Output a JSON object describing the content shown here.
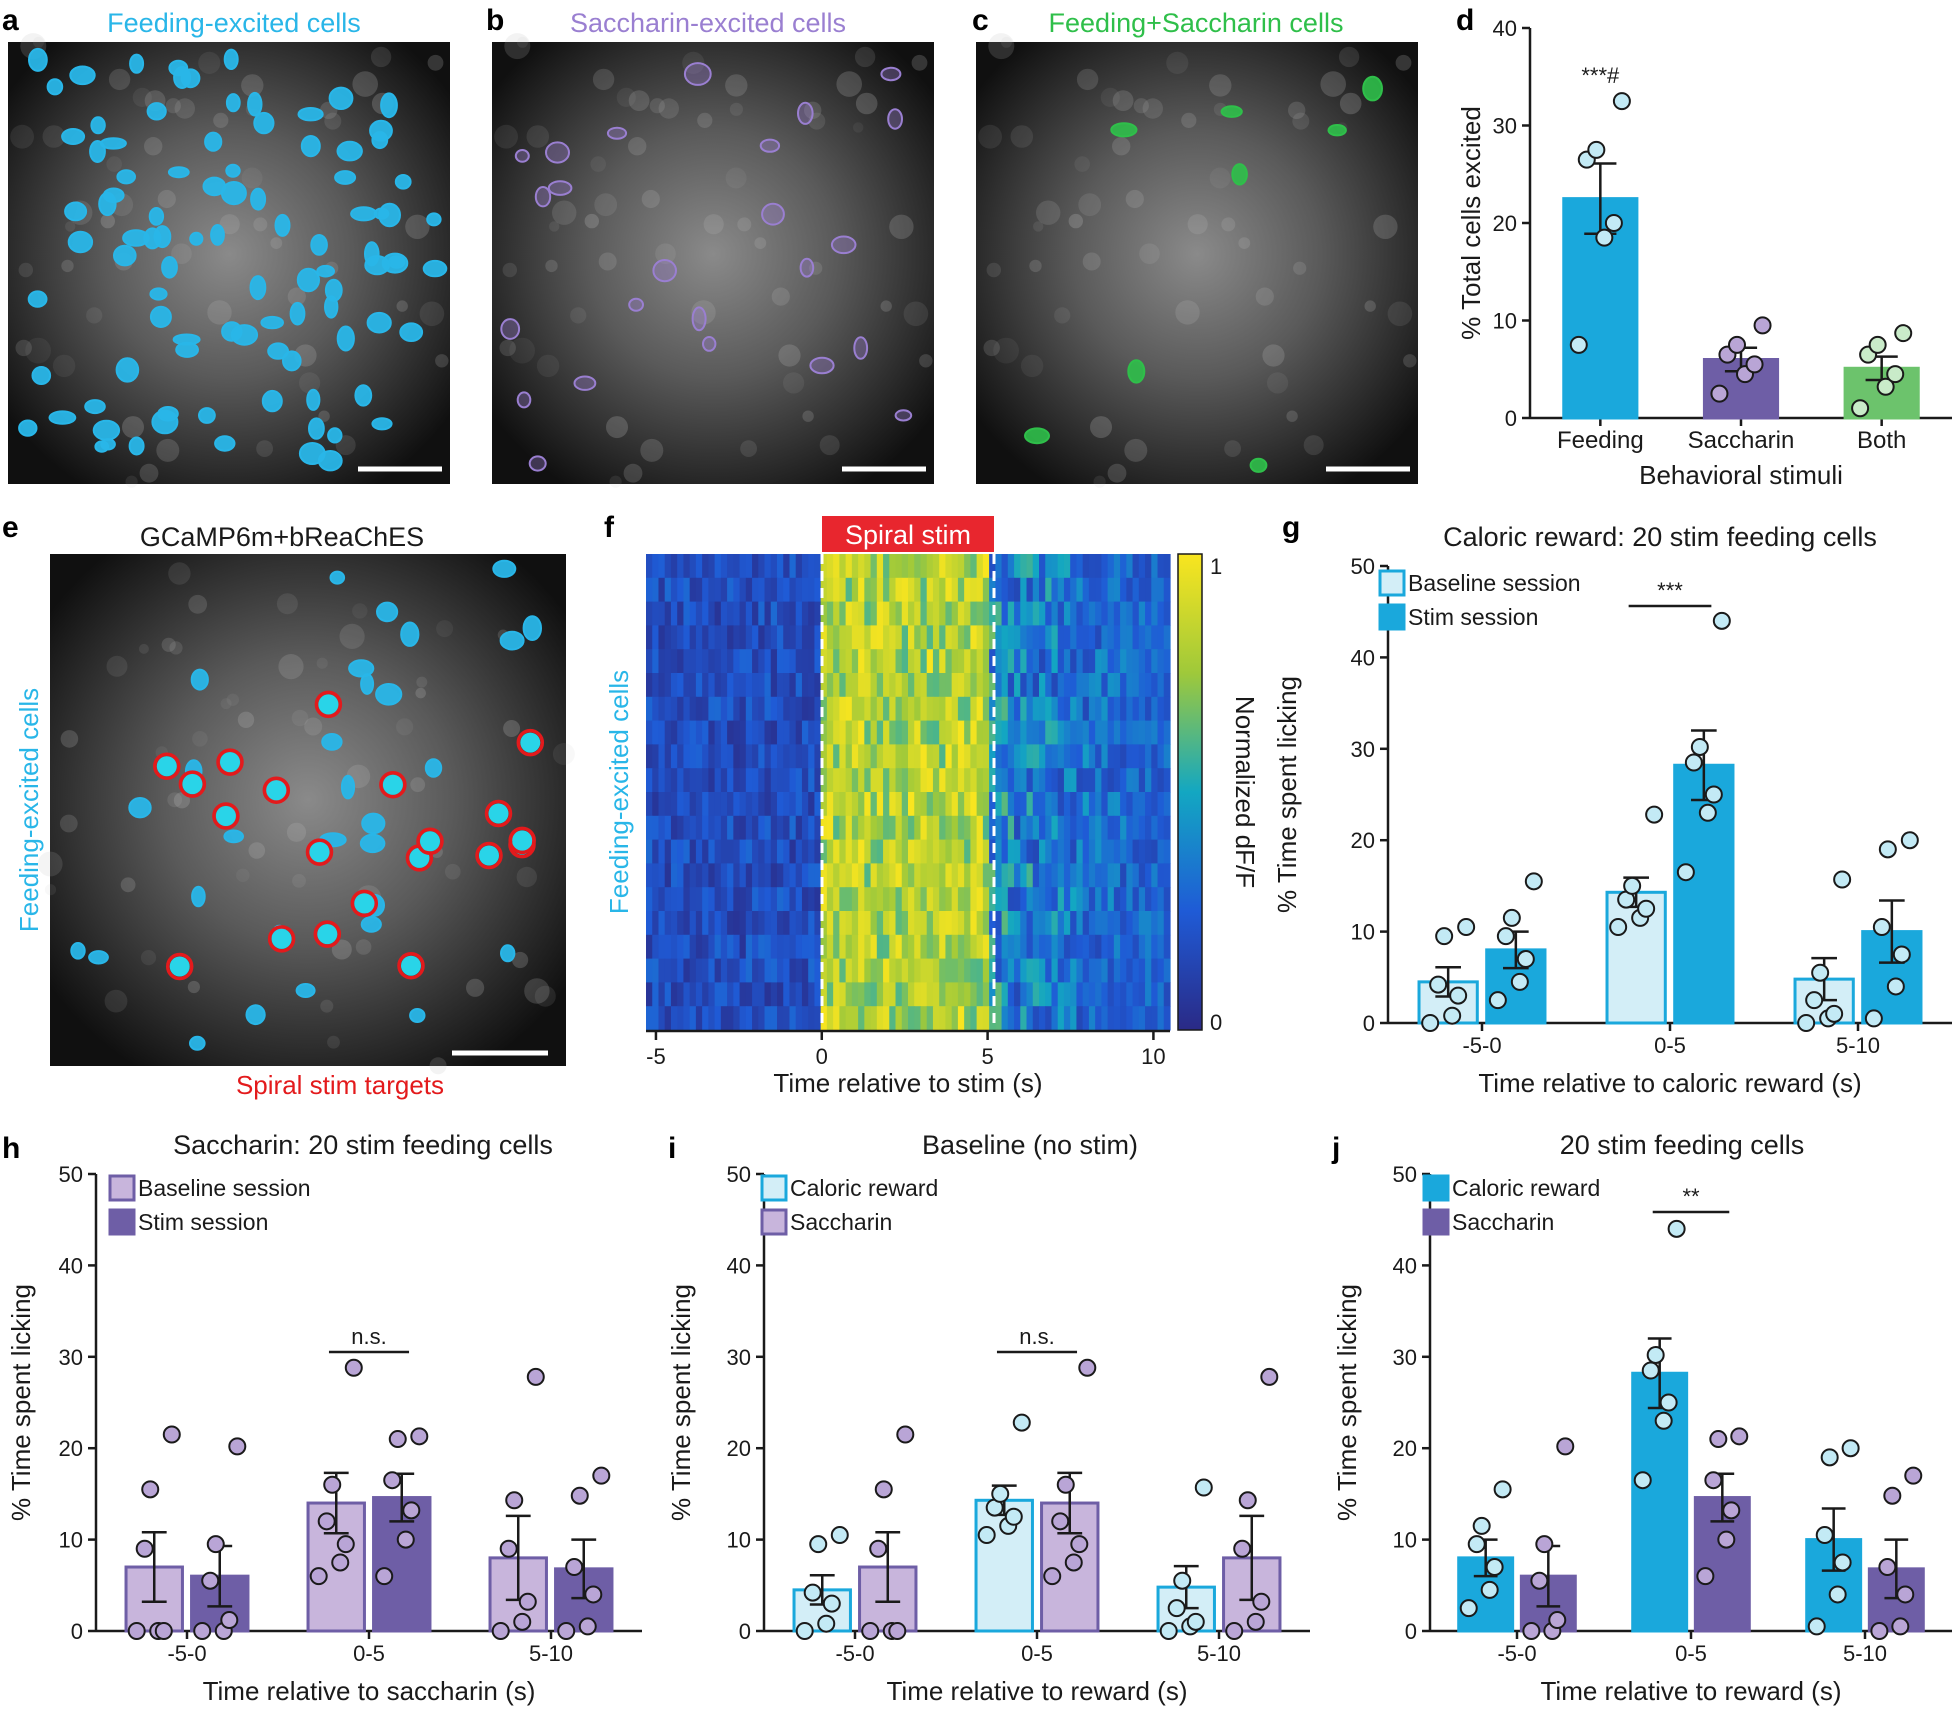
{
  "microscopy": [
    {
      "panel": "a",
      "label": "Feeding-excited cells",
      "color": "#29b6e8",
      "roi_count": 95
    },
    {
      "panel": "b",
      "label": "Saccharin-excited cells",
      "color": "#9a7fd1",
      "roi_count": 24
    },
    {
      "panel": "c",
      "label": "Feeding+Saccharin cells",
      "color": "#2fbf4a",
      "roi_count": 8
    }
  ],
  "panel_e": {
    "title": "GCaMP6m+bReaChES",
    "ylabel": "Feeding-excited cells",
    "xlabel": "Spiral stim targets",
    "ylabel_color": "#29b6e8",
    "xlabel_color": "#e31a1c",
    "target_count": 20
  },
  "panel_f": {
    "banner": "Spiral stim",
    "banner_color": "#e8262e",
    "ylabel": "Feeding-excited cells",
    "xlabel": "Time relative to stim (s)",
    "xticks": [
      "-5",
      "0",
      "5",
      "10"
    ],
    "colorbar_label": "Normalized dF/F",
    "colorbar_ticks": [
      "1",
      "0"
    ]
  },
  "colors": {
    "caloric": "#1aa8dc",
    "caloric_light": "#d3eef7",
    "saccharin": "#6e5ea6",
    "saccharin_light": "#c8b5dc",
    "both": "#6cc36c",
    "dot_cyan": "#c3eaf5",
    "dot_purple": "#b9a5d6"
  },
  "chart_data": [
    {
      "id": "d",
      "type": "bar",
      "title": "",
      "xlabel": "Behavioral stimuli",
      "ylabel": "% Total cells excited",
      "ylim": [
        0,
        40
      ],
      "yticks": [
        0,
        10,
        20,
        30,
        40
      ],
      "categories": [
        "Feeding",
        "Saccharin",
        "Both"
      ],
      "values": [
        22.5,
        6.0,
        5.1
      ],
      "sem": [
        3.6,
        1.2,
        1.2
      ],
      "points": [
        [
          7.5,
          18.5,
          20,
          26.5,
          27.5,
          32.5
        ],
        [
          2.5,
          4.5,
          5.5,
          6.5,
          7.5,
          9.5
        ],
        [
          1,
          3.2,
          4.5,
          6.5,
          7.5,
          8.7
        ]
      ],
      "significance": [
        {
          "at": "Feeding",
          "label": "***#"
        }
      ]
    },
    {
      "id": "g",
      "type": "bar",
      "title": "Caloric reward: 20 stim feeding cells",
      "xlabel": "Time relative to caloric reward (s)",
      "ylabel": "% Time spent licking",
      "ylim": [
        0,
        50
      ],
      "yticks": [
        0,
        10,
        20,
        30,
        40,
        50
      ],
      "categories": [
        "-5-0",
        "0-5",
        "5-10"
      ],
      "series": [
        {
          "name": "Baseline session",
          "style": "light_cyan",
          "values": [
            4.5,
            14.3,
            4.8
          ],
          "sem": [
            1.6,
            1.6,
            2.3
          ],
          "points": [
            [
              0,
              0.8,
              3,
              4.2,
              9.5,
              10.5
            ],
            [
              10.5,
              11.5,
              12.5,
              13.5,
              15,
              22.8
            ],
            [
              0,
              0.5,
              1,
              2.5,
              5.5,
              15.7
            ]
          ]
        },
        {
          "name": "Stim session",
          "style": "cyan",
          "values": [
            8.0,
            28.2,
            10.0
          ],
          "sem": [
            2.0,
            3.8,
            3.4
          ],
          "points": [
            [
              2.5,
              4.5,
              7,
              9.5,
              11.5,
              15.5
            ],
            [
              16.5,
              23,
              25,
              28.5,
              30.2,
              44
            ],
            [
              0.5,
              4,
              7.5,
              10.5,
              19,
              20
            ]
          ]
        }
      ],
      "significance": [
        {
          "at": "0-5",
          "label": "***"
        }
      ]
    },
    {
      "id": "h",
      "type": "bar",
      "title": "Saccharin: 20 stim feeding cells",
      "xlabel": "Time relative to saccharin (s)",
      "ylabel": "% Time spent licking",
      "ylim": [
        0,
        50
      ],
      "yticks": [
        0,
        10,
        20,
        30,
        40,
        50
      ],
      "categories": [
        "-5-0",
        "0-5",
        "5-10"
      ],
      "series": [
        {
          "name": "Baseline session",
          "style": "light_purple",
          "values": [
            7.0,
            14.0,
            8.0
          ],
          "sem": [
            3.8,
            3.3,
            4.6
          ],
          "points": [
            [
              0,
              0,
              0,
              9,
              15.5,
              21.5
            ],
            [
              6,
              7.5,
              9.5,
              12,
              16,
              28.8
            ],
            [
              0,
              1,
              3.2,
              9,
              14.3,
              27.8
            ]
          ]
        },
        {
          "name": "Stim session",
          "style": "purple",
          "values": [
            6.0,
            14.6,
            6.8
          ],
          "sem": [
            3.3,
            2.6,
            3.2
          ],
          "points": [
            [
              0,
              0,
              1.2,
              5.5,
              9.5,
              20.2
            ],
            [
              6,
              10,
              13.2,
              16.5,
              21,
              21.3
            ],
            [
              0,
              0.5,
              4,
              7,
              14.8,
              17
            ]
          ]
        }
      ],
      "significance": [
        {
          "at": "0-5",
          "label": "n.s."
        }
      ]
    },
    {
      "id": "i",
      "type": "bar",
      "title": "Baseline (no stim)",
      "xlabel": "Time relative to reward (s)",
      "ylabel": "% Time spent licking",
      "ylim": [
        0,
        50
      ],
      "yticks": [
        0,
        10,
        20,
        30,
        40,
        50
      ],
      "categories": [
        "-5-0",
        "0-5",
        "5-10"
      ],
      "series": [
        {
          "name": "Caloric reward",
          "style": "light_cyan",
          "values": [
            4.5,
            14.3,
            4.8
          ],
          "sem": [
            1.6,
            1.6,
            2.3
          ],
          "points": [
            [
              0,
              0.8,
              3,
              4.2,
              9.5,
              10.5
            ],
            [
              10.5,
              11.5,
              12.5,
              13.5,
              15,
              22.8
            ],
            [
              0,
              0.5,
              1,
              2.5,
              5.5,
              15.7
            ]
          ]
        },
        {
          "name": "Saccharin",
          "style": "light_purple",
          "values": [
            7.0,
            14.0,
            8.0
          ],
          "sem": [
            3.8,
            3.3,
            4.6
          ],
          "points": [
            [
              0,
              0,
              0,
              9,
              15.5,
              21.5
            ],
            [
              6,
              7.5,
              9.5,
              12,
              16,
              28.8
            ],
            [
              0,
              1,
              3.2,
              9,
              14.3,
              27.8
            ]
          ]
        }
      ],
      "significance": [
        {
          "at": "0-5",
          "label": "n.s."
        }
      ]
    },
    {
      "id": "j",
      "type": "bar",
      "title": "20 stim feeding cells",
      "xlabel": "Time relative to reward (s)",
      "ylabel": "% Time spent licking",
      "ylim": [
        0,
        50
      ],
      "yticks": [
        0,
        10,
        20,
        30,
        40,
        50
      ],
      "categories": [
        "-5-0",
        "0-5",
        "5-10"
      ],
      "series": [
        {
          "name": "Caloric reward",
          "style": "cyan",
          "values": [
            8.0,
            28.2,
            10.0
          ],
          "sem": [
            2.0,
            3.8,
            3.4
          ],
          "points": [
            [
              2.5,
              4.5,
              7,
              9.5,
              11.5,
              15.5
            ],
            [
              16.5,
              23,
              25,
              28.5,
              30.2,
              44
            ],
            [
              0.5,
              4,
              7.5,
              10.5,
              19,
              20
            ]
          ]
        },
        {
          "name": "Saccharin",
          "style": "purple",
          "values": [
            6.0,
            14.6,
            6.8
          ],
          "sem": [
            3.3,
            2.6,
            3.2
          ],
          "points": [
            [
              0,
              0,
              1.2,
              5.5,
              9.5,
              20.2
            ],
            [
              6,
              10,
              13.2,
              16.5,
              21,
              21.3
            ],
            [
              0,
              0.5,
              4,
              7,
              14.8,
              17
            ]
          ]
        }
      ],
      "significance": [
        {
          "at": "0-5",
          "label": "**"
        }
      ]
    }
  ]
}
